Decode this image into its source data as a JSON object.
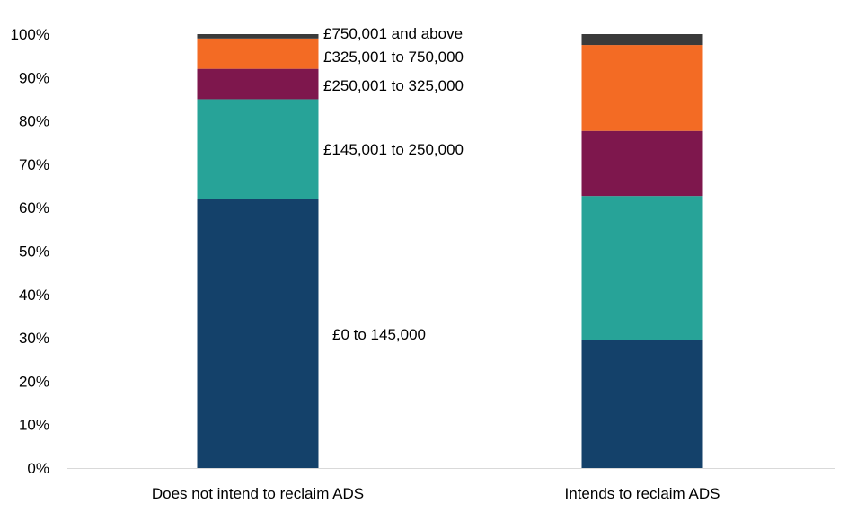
{
  "chart_data": {
    "type": "bar",
    "stacked": true,
    "categories": [
      "Does not intend to reclaim ADS",
      "Intends to reclaim ADS"
    ],
    "series": [
      {
        "name": "£0 to 145,000",
        "color": "#14416a",
        "values": [
          62,
          29.5
        ]
      },
      {
        "name": "£145,001 to 250,000",
        "color": "#27a398",
        "values": [
          23,
          33.2
        ]
      },
      {
        "name": "£250,001 to 325,000",
        "color": "#7e174d",
        "values": [
          7,
          15
        ]
      },
      {
        "name": "£325,001 to 750,000",
        "color": "#f36b24",
        "values": [
          7,
          19.8
        ]
      },
      {
        "name": "£750,001 and above",
        "color": "#3a3a3a",
        "values": [
          1,
          2.5
        ]
      }
    ],
    "yticks": [
      "0%",
      "10%",
      "20%",
      "30%",
      "40%",
      "50%",
      "60%",
      "70%",
      "80%",
      "90%",
      "100%"
    ],
    "ylim": [
      0,
      100
    ],
    "grid": false,
    "legend": "labels beside first bar"
  }
}
